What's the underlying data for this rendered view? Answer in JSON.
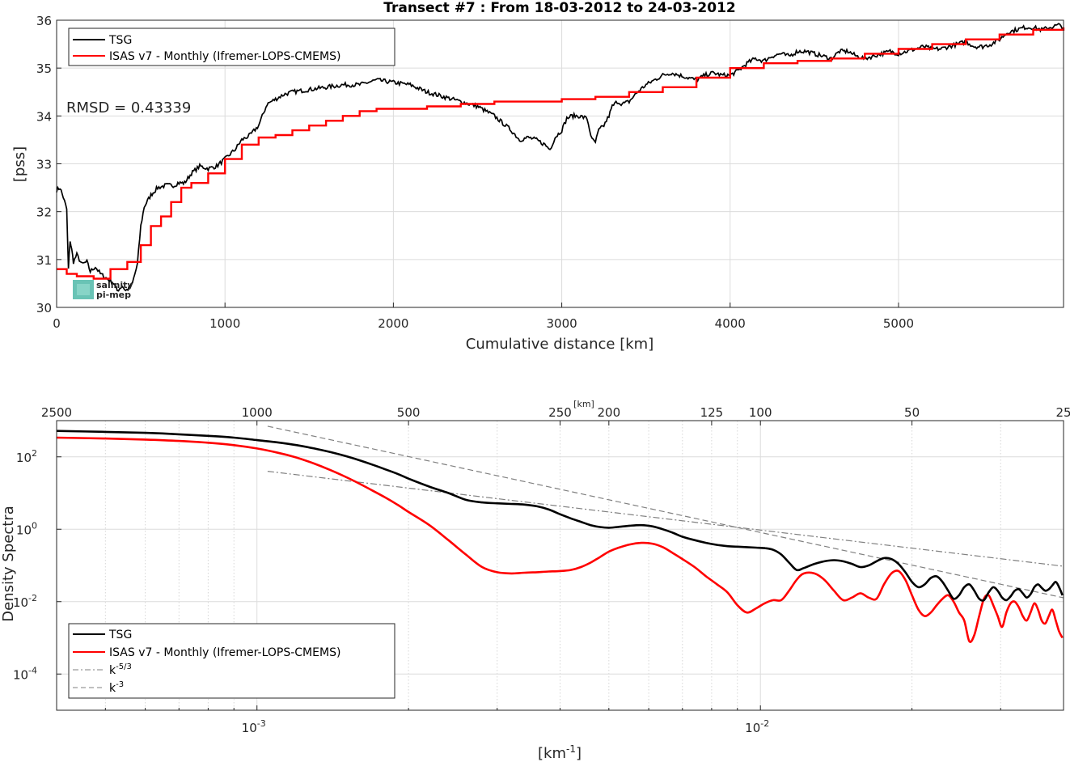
{
  "chart_data": [
    {
      "type": "line",
      "title": "Transect #7 : From 18-03-2012 to 24-03-2012",
      "xlabel": "Cumulative distance [km]",
      "ylabel": "[pss]",
      "xlim": [
        0,
        5980
      ],
      "ylim": [
        30,
        36
      ],
      "xticks": [
        "0",
        "1000",
        "2000",
        "3000",
        "4000",
        "5000"
      ],
      "yticks": [
        "30",
        "31",
        "32",
        "33",
        "34",
        "35",
        "36"
      ],
      "grid": true,
      "legend_position": "top-left",
      "annotation": "RMSD = 0.43339",
      "logo_text": [
        "salinity",
        "pi-mep"
      ],
      "series": [
        {
          "name": "TSG",
          "color": "#000000",
          "x": [
            0,
            20,
            40,
            60,
            70,
            80,
            90,
            100,
            120,
            150,
            180,
            200,
            230,
            260,
            300,
            340,
            360,
            390,
            410,
            430,
            450,
            480,
            500,
            520,
            560,
            600,
            650,
            700,
            720,
            760,
            800,
            850,
            900,
            950,
            1000,
            1030,
            1060,
            1100,
            1150,
            1200,
            1250,
            1300,
            1350,
            1400,
            1500,
            1600,
            1700,
            1800,
            1900,
            2000,
            2100,
            2200,
            2300,
            2400,
            2500,
            2600,
            2650,
            2700,
            2750,
            2800,
            2850,
            2900,
            2930,
            2960,
            3000,
            3030,
            3060,
            3100,
            3150,
            3180,
            3200,
            3220,
            3250,
            3280,
            3300,
            3330,
            3360,
            3400,
            3450,
            3500,
            3550,
            3600,
            3650,
            3700,
            3750,
            3800,
            3850,
            3900,
            3950,
            4000,
            4050,
            4100,
            4150,
            4200,
            4250,
            4300,
            4350,
            4400,
            4450,
            4500,
            4550,
            4600,
            4650,
            4700,
            4750,
            4800,
            4850,
            4900,
            4950,
            5000,
            5050,
            5100,
            5150,
            5200,
            5250,
            5300,
            5350,
            5400,
            5450,
            5500,
            5550,
            5600,
            5650,
            5700,
            5750,
            5800,
            5850,
            5900,
            5950,
            5980
          ],
          "y": [
            32.45,
            32.5,
            32.3,
            32.05,
            30.8,
            31.4,
            31.2,
            30.95,
            31.1,
            30.9,
            30.95,
            30.75,
            30.85,
            30.7,
            30.6,
            30.5,
            30.35,
            30.45,
            30.35,
            30.4,
            30.5,
            30.9,
            31.7,
            32.1,
            32.35,
            32.5,
            32.55,
            32.55,
            32.6,
            32.6,
            32.8,
            32.95,
            32.9,
            32.95,
            33.1,
            33.2,
            33.3,
            33.5,
            33.6,
            33.8,
            34.25,
            34.35,
            34.45,
            34.5,
            34.55,
            34.6,
            34.65,
            34.65,
            34.75,
            34.7,
            34.65,
            34.5,
            34.4,
            34.3,
            34.2,
            34.0,
            33.85,
            33.7,
            33.5,
            33.55,
            33.5,
            33.4,
            33.3,
            33.55,
            33.7,
            33.95,
            34.0,
            34.0,
            33.95,
            33.5,
            33.45,
            33.7,
            33.8,
            34.0,
            34.2,
            34.3,
            34.25,
            34.3,
            34.5,
            34.65,
            34.75,
            34.85,
            34.9,
            34.85,
            34.8,
            34.75,
            34.85,
            34.9,
            34.85,
            34.85,
            34.95,
            35.1,
            35.2,
            35.15,
            35.25,
            35.3,
            35.25,
            35.35,
            35.35,
            35.3,
            35.25,
            35.2,
            35.35,
            35.35,
            35.25,
            35.2,
            35.25,
            35.3,
            35.35,
            35.3,
            35.35,
            35.4,
            35.45,
            35.4,
            35.4,
            35.45,
            35.5,
            35.55,
            35.45,
            35.45,
            35.5,
            35.6,
            35.75,
            35.8,
            35.85,
            35.85,
            35.8,
            35.85,
            35.9,
            35.85
          ]
        },
        {
          "name": "ISAS v7 - Monthly (Ifremer-LOPS-CMEMS)",
          "color": "#ff0000",
          "x": [
            0,
            60,
            120,
            220,
            320,
            420,
            500,
            560,
            620,
            680,
            740,
            800,
            900,
            1000,
            1100,
            1200,
            1300,
            1400,
            1500,
            1600,
            1700,
            1800,
            1900,
            2000,
            2200,
            2400,
            2600,
            2800,
            3000,
            3200,
            3400,
            3600,
            3800,
            4000,
            4200,
            4400,
            4600,
            4800,
            5000,
            5200,
            5400,
            5600,
            5800,
            5980
          ],
          "y": [
            30.8,
            30.7,
            30.65,
            30.6,
            30.8,
            30.95,
            31.3,
            31.7,
            31.9,
            32.2,
            32.5,
            32.6,
            32.8,
            33.1,
            33.4,
            33.55,
            33.6,
            33.7,
            33.8,
            33.9,
            34.0,
            34.1,
            34.15,
            34.15,
            34.2,
            34.25,
            34.3,
            34.3,
            34.35,
            34.4,
            34.5,
            34.6,
            34.8,
            35.0,
            35.1,
            35.15,
            35.2,
            35.3,
            35.4,
            35.5,
            35.6,
            35.7,
            35.8,
            35.85
          ]
        }
      ]
    },
    {
      "type": "line",
      "title": "",
      "xlabel": "[km",
      "xlabel_sup": "-1",
      "xlabel_tail": "]",
      "ylabel": "Density Spectra",
      "top_axis_label": "[km]",
      "x_scale": "log",
      "y_scale": "log",
      "xlim": [
        0.0004,
        0.04
      ],
      "ylim": [
        1e-05,
        1000
      ],
      "xticks": [
        {
          "value": 0.001,
          "base": "10",
          "exp": "-3"
        },
        {
          "value": 0.01,
          "base": "10",
          "exp": "-2"
        }
      ],
      "yticks": [
        {
          "value": 0.0001,
          "base": "10",
          "exp": "-4"
        },
        {
          "value": 0.01,
          "base": "10",
          "exp": "-2"
        },
        {
          "value": 1,
          "base": "10",
          "exp": "0"
        },
        {
          "value": 100,
          "base": "10",
          "exp": "2"
        }
      ],
      "top_ticks": [
        {
          "km": 2500,
          "label": "2500"
        },
        {
          "km": 1000,
          "label": "1000"
        },
        {
          "km": 500,
          "label": "500"
        },
        {
          "km": 250,
          "label": "250"
        },
        {
          "km": 200,
          "label": "200"
        },
        {
          "km": 125,
          "label": "125"
        },
        {
          "km": 100,
          "label": "100"
        },
        {
          "km": 50,
          "label": "50"
        },
        {
          "km": 25,
          "label": "25"
        }
      ],
      "grid": true,
      "legend_position": "bottom-left",
      "series": [
        {
          "name": "TSG",
          "color": "#000000",
          "x": [
            0.0004,
            0.0005,
            0.0006,
            0.0007,
            0.0008,
            0.0009,
            0.001,
            0.0011,
            0.0012,
            0.0013,
            0.0014,
            0.0015,
            0.0016,
            0.0017,
            0.0018,
            0.0019,
            0.002,
            0.0022,
            0.0024,
            0.0026,
            0.0028,
            0.003,
            0.0032,
            0.0034,
            0.0036,
            0.0038,
            0.004,
            0.0042,
            0.0044,
            0.0046,
            0.0048,
            0.005,
            0.0052,
            0.0055,
            0.0058,
            0.0061,
            0.0064,
            0.0067,
            0.007,
            0.0074,
            0.0078,
            0.0082,
            0.0086,
            0.009,
            0.0094,
            0.0098,
            0.0102,
            0.0106,
            0.011,
            0.0114,
            0.0118,
            0.0122,
            0.0128,
            0.0134,
            0.014,
            0.0146,
            0.0152,
            0.0158,
            0.0164,
            0.017,
            0.0176,
            0.0182,
            0.0188,
            0.0194,
            0.02,
            0.0206,
            0.0212,
            0.0218,
            0.0224,
            0.023,
            0.0236,
            0.0242,
            0.0248,
            0.0254,
            0.026,
            0.0266,
            0.0272,
            0.0278,
            0.0284,
            0.029,
            0.0296,
            0.0302,
            0.0308,
            0.0314,
            0.032,
            0.0326,
            0.0332,
            0.0338,
            0.0344,
            0.035,
            0.0356,
            0.0362,
            0.0368,
            0.0374,
            0.038,
            0.0386,
            0.0392,
            0.0398
          ],
          "y": [
            520,
            490,
            460,
            420,
            380,
            340,
            290,
            250,
            210,
            170,
            135,
            105,
            80,
            60,
            45,
            34,
            25,
            15,
            10,
            6.5,
            5.5,
            5.2,
            5.0,
            4.8,
            4.3,
            3.5,
            2.6,
            2.0,
            1.6,
            1.3,
            1.15,
            1.1,
            1.15,
            1.25,
            1.3,
            1.2,
            1.0,
            0.8,
            0.62,
            0.5,
            0.42,
            0.37,
            0.34,
            0.33,
            0.32,
            0.31,
            0.3,
            0.27,
            0.2,
            0.12,
            0.075,
            0.085,
            0.11,
            0.13,
            0.14,
            0.13,
            0.11,
            0.09,
            0.1,
            0.13,
            0.16,
            0.15,
            0.11,
            0.065,
            0.035,
            0.025,
            0.03,
            0.045,
            0.05,
            0.035,
            0.02,
            0.012,
            0.015,
            0.025,
            0.03,
            0.02,
            0.012,
            0.011,
            0.018,
            0.025,
            0.02,
            0.013,
            0.011,
            0.014,
            0.02,
            0.022,
            0.017,
            0.013,
            0.016,
            0.025,
            0.03,
            0.024,
            0.02,
            0.022,
            0.028,
            0.035,
            0.025,
            0.015
          ]
        },
        {
          "name": "ISAS v7 - Monthly (Ifremer-LOPS-CMEMS)",
          "color": "#ff0000",
          "x": [
            0.0004,
            0.0005,
            0.0006,
            0.0007,
            0.0008,
            0.0009,
            0.001,
            0.0011,
            0.0012,
            0.0013,
            0.0014,
            0.0015,
            0.0016,
            0.0017,
            0.0018,
            0.0019,
            0.002,
            0.0022,
            0.0024,
            0.0026,
            0.0028,
            0.003,
            0.0032,
            0.0034,
            0.0036,
            0.0038,
            0.004,
            0.0042,
            0.0044,
            0.0046,
            0.0048,
            0.005,
            0.0052,
            0.0055,
            0.0058,
            0.0061,
            0.0064,
            0.0067,
            0.007,
            0.0074,
            0.0078,
            0.0082,
            0.0086,
            0.009,
            0.0094,
            0.0098,
            0.0102,
            0.0106,
            0.011,
            0.0114,
            0.0118,
            0.0122,
            0.0128,
            0.0134,
            0.014,
            0.0146,
            0.0152,
            0.0158,
            0.0164,
            0.017,
            0.0176,
            0.0182,
            0.0188,
            0.0194,
            0.02,
            0.0206,
            0.0212,
            0.0218,
            0.0224,
            0.023,
            0.0236,
            0.0242,
            0.0248,
            0.0254,
            0.026,
            0.0266,
            0.0272,
            0.0278,
            0.0284,
            0.029,
            0.0296,
            0.0302,
            0.0308,
            0.0314,
            0.032,
            0.0326,
            0.0332,
            0.0338,
            0.0344,
            0.035,
            0.0356,
            0.0362,
            0.0368,
            0.0374,
            0.038,
            0.0386,
            0.0392,
            0.0398
          ],
          "y": [
            340,
            320,
            300,
            275,
            245,
            210,
            170,
            130,
            95,
            65,
            43,
            28,
            18,
            11.5,
            7.5,
            4.8,
            3.0,
            1.3,
            0.5,
            0.2,
            0.09,
            0.065,
            0.06,
            0.063,
            0.065,
            0.068,
            0.07,
            0.075,
            0.09,
            0.12,
            0.17,
            0.24,
            0.3,
            0.38,
            0.42,
            0.4,
            0.32,
            0.22,
            0.15,
            0.09,
            0.05,
            0.03,
            0.018,
            0.008,
            0.005,
            0.0065,
            0.009,
            0.011,
            0.011,
            0.02,
            0.04,
            0.06,
            0.06,
            0.04,
            0.02,
            0.011,
            0.013,
            0.017,
            0.013,
            0.012,
            0.03,
            0.06,
            0.07,
            0.04,
            0.015,
            0.006,
            0.004,
            0.005,
            0.008,
            0.012,
            0.015,
            0.01,
            0.005,
            0.003,
            0.0008,
            0.0012,
            0.004,
            0.012,
            0.015,
            0.008,
            0.004,
            0.002,
            0.005,
            0.009,
            0.01,
            0.007,
            0.004,
            0.003,
            0.005,
            0.009,
            0.006,
            0.003,
            0.0025,
            0.004,
            0.006,
            0.003,
            0.0015,
            0.001
          ]
        },
        {
          "name": "k-5/3",
          "label_base": "k",
          "label_sup": "-5/3",
          "color": "#808080",
          "dash": "dashdot",
          "x": [
            0.00105,
            0.04
          ],
          "y": [
            40,
            0.095
          ]
        },
        {
          "name": "k-3",
          "label_base": "k",
          "label_sup": "-3",
          "color": "#808080",
          "dash": "dash",
          "x": [
            0.00105,
            0.04
          ],
          "y": [
            700,
            0.0128
          ]
        }
      ]
    }
  ]
}
